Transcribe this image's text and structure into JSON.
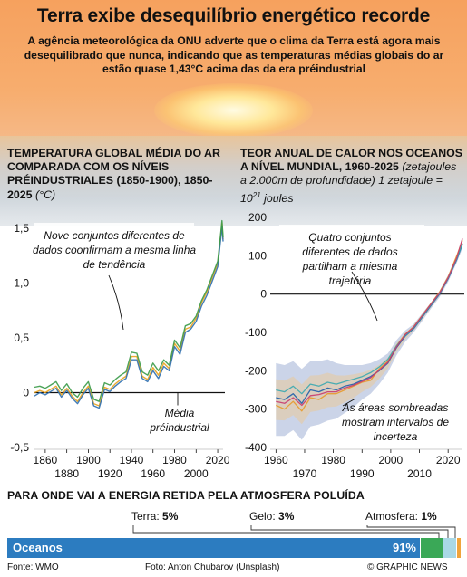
{
  "header": {
    "title": "Terra exibe desequilíbrio energético recorde",
    "subtitle": "A agência meteorológica da ONU adverte que o clima da Terra está agora mais desequilibrado que nunca, indicando que as temperaturas médias globais do ar estão quase 1,43°C acima das da era préindustrial"
  },
  "left_panel": {
    "title": "TEMPERATURA GLOBAL MÉDIA DO AR COMPARADA COM OS NÍVEIS PRÉINDUSTRIALES (1850-1900), 1850-2025",
    "unit": "(°C)"
  },
  "right_panel": {
    "title": "TEOR ANUAL DE CALOR NOS OCEANOS A NÍVEL MUNDIAL, 1960-2025",
    "unit_prefix": "(zetajoules a 2.000m de profundidade) 1 zetajoule = 10",
    "unit_exp": "21",
    "unit_suffix": " joules"
  },
  "chart_data": [
    {
      "type": "line",
      "xlim": [
        1850,
        2025
      ],
      "ylim": [
        -0.5,
        1.6
      ],
      "x_ticks_top": [
        "1860",
        "1900",
        "1940",
        "1980",
        "2020"
      ],
      "x_ticks_bottom": [
        "1880",
        "1920",
        "1960",
        "2000"
      ],
      "y_ticks": [
        "1,5",
        "1,0",
        "0,5",
        "0",
        "-0,5"
      ],
      "x": [
        1850,
        1855,
        1860,
        1865,
        1870,
        1875,
        1880,
        1885,
        1890,
        1895,
        1900,
        1905,
        1910,
        1915,
        1920,
        1925,
        1930,
        1935,
        1940,
        1945,
        1950,
        1955,
        1960,
        1965,
        1970,
        1975,
        1980,
        1985,
        1990,
        1995,
        2000,
        2005,
        2010,
        2015,
        2020,
        2023,
        2024,
        2025
      ],
      "series": [
        {
          "color": "#e8a21c",
          "values": [
            0.0,
            0.02,
            0.0,
            0.03,
            0.06,
            -0.02,
            0.04,
            -0.03,
            -0.08,
            0.0,
            0.06,
            -0.1,
            -0.12,
            0.05,
            0.03,
            0.08,
            0.12,
            0.15,
            0.33,
            0.33,
            0.15,
            0.12,
            0.23,
            0.16,
            0.27,
            0.22,
            0.45,
            0.38,
            0.58,
            0.6,
            0.68,
            0.82,
            0.92,
            1.05,
            1.18,
            1.45,
            1.55,
            1.4
          ]
        },
        {
          "color": "#2e6fb0",
          "values": [
            -0.03,
            0.0,
            -0.02,
            0.01,
            0.04,
            -0.04,
            0.02,
            -0.05,
            -0.1,
            -0.02,
            0.04,
            -0.12,
            -0.14,
            0.03,
            0.01,
            0.06,
            0.1,
            0.13,
            0.3,
            0.3,
            0.13,
            0.1,
            0.2,
            0.13,
            0.24,
            0.2,
            0.42,
            0.35,
            0.55,
            0.58,
            0.65,
            0.79,
            0.89,
            1.02,
            1.15,
            1.42,
            1.52,
            1.38
          ]
        },
        {
          "color": "#3a9a48",
          "values": [
            0.05,
            0.06,
            0.04,
            0.07,
            0.1,
            0.02,
            0.08,
            0.0,
            -0.04,
            0.04,
            0.1,
            -0.06,
            -0.08,
            0.09,
            0.07,
            0.12,
            0.16,
            0.19,
            0.37,
            0.36,
            0.19,
            0.16,
            0.27,
            0.2,
            0.3,
            0.25,
            0.48,
            0.41,
            0.61,
            0.63,
            0.7,
            0.84,
            0.94,
            1.07,
            1.2,
            1.47,
            1.57,
            1.42
          ]
        }
      ],
      "baseline": 0,
      "annotation_top": "Nove conjuntos diferentes de dados coonfirmam a mesma linha de tendência",
      "annotation_baseline": "Média préindustrial"
    },
    {
      "type": "line",
      "xlim": [
        1958,
        2025
      ],
      "ylim": [
        -400,
        200
      ],
      "x_ticks_top": [
        "1960",
        "1980",
        "2000",
        "2020"
      ],
      "x_ticks_bottom": [
        "1970",
        "1990",
        "2010"
      ],
      "y_ticks": [
        "200",
        "100",
        "0",
        "-100",
        "-200",
        "-300",
        "-400"
      ],
      "x": [
        1960,
        1963,
        1966,
        1969,
        1972,
        1975,
        1978,
        1981,
        1984,
        1987,
        1990,
        1993,
        1996,
        1999,
        2002,
        2005,
        2008,
        2011,
        2014,
        2017,
        2020,
        2023,
        2025
      ],
      "series": [
        {
          "color": "#1f5fa8",
          "values": [
            -270,
            -275,
            -260,
            -285,
            -250,
            -255,
            -245,
            -250,
            -240,
            -235,
            -225,
            -215,
            -200,
            -180,
            -140,
            -110,
            -90,
            -60,
            -30,
            0,
            40,
            90,
            130
          ]
        },
        {
          "color": "#e79a2a",
          "values": [
            -290,
            -300,
            -280,
            -305,
            -270,
            -275,
            -260,
            -260,
            -250,
            -240,
            -230,
            -225,
            -195,
            -175,
            -135,
            -105,
            -85,
            -55,
            -25,
            5,
            45,
            100,
            140
          ]
        },
        {
          "color": "#3aa9b0",
          "values": [
            -250,
            -255,
            -240,
            -260,
            -235,
            -240,
            -230,
            -235,
            -228,
            -222,
            -215,
            -205,
            -190,
            -170,
            -135,
            -108,
            -88,
            -58,
            -28,
            2,
            42,
            92,
            132
          ]
        },
        {
          "color": "#c83b6e",
          "values": [
            -280,
            -285,
            -270,
            -290,
            -265,
            -262,
            -255,
            -255,
            -245,
            -238,
            -228,
            -218,
            -198,
            -178,
            -138,
            -106,
            -86,
            -56,
            -26,
            3,
            43,
            95,
            145
          ]
        }
      ],
      "band": {
        "upper": [
          -180,
          -185,
          -175,
          -195,
          -175,
          -175,
          -170,
          -180,
          -185,
          -185,
          -185,
          -180,
          -170,
          -155,
          -120,
          -95,
          -78,
          -50,
          -22,
          8,
          50,
          100,
          150
        ],
        "lower": [
          -370,
          -370,
          -355,
          -380,
          -345,
          -340,
          -330,
          -325,
          -310,
          -295,
          -275,
          -260,
          -235,
          -205,
          -160,
          -125,
          -100,
          -70,
          -38,
          -8,
          32,
          82,
          120
        ]
      },
      "baseline": 0,
      "annotation_top": "Quatro conjuntos diferentes de dados partilham a miesma trajetória",
      "annotation_bottom": "As áreas sombreadas mostram intervalos de incerteza"
    }
  ],
  "energy": {
    "title": "PARA ONDE VAI A ENERGIA RETIDA PELA ATMOSFERA POLUÍDA",
    "land_label": "Terra: ",
    "land_value": "5%",
    "ice_label": "Gelo: ",
    "ice_value": "3%",
    "atmosphere_label": "Atmosfera: ",
    "atmosphere_value": "1%",
    "oceans_label": "Oceanos",
    "oceans_value": "91%",
    "shares": [
      91,
      5,
      3,
      1
    ],
    "colors": {
      "oceans": "#2c7cc0",
      "land": "#3aa857",
      "ice": "#a9d8e6",
      "atmosphere": "#f0a43c"
    }
  },
  "footer": {
    "source": "Fonte: WMO",
    "photo": "Foto: Anton Chubarov (Unsplash)",
    "credit": "© GRAPHIC NEWS"
  }
}
